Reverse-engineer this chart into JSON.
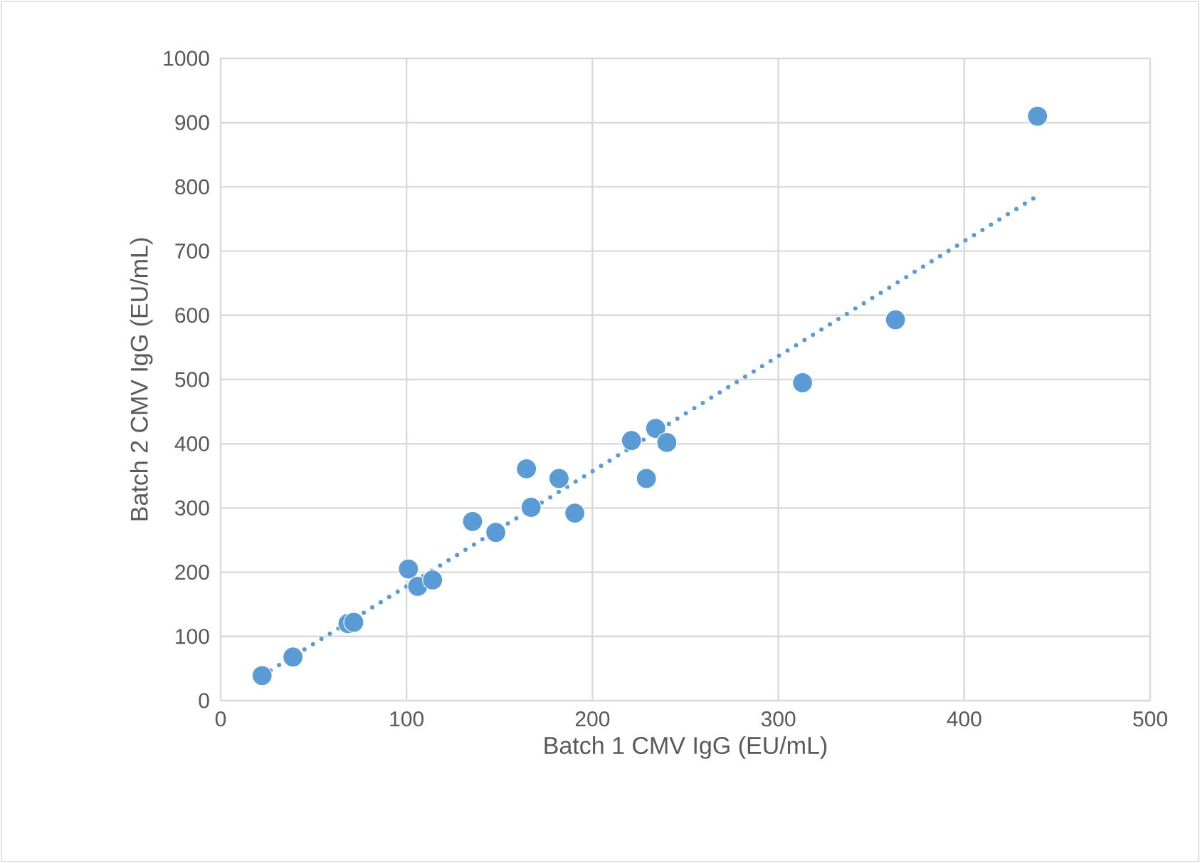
{
  "chart_data": {
    "type": "scatter",
    "xlabel": "Batch 1 CMV IgG (EU/mL)",
    "ylabel": "Batch 2 CMV IgG (EU/mL)",
    "xlim": [
      0,
      500
    ],
    "ylim": [
      0,
      1000
    ],
    "xticks": [
      0,
      100,
      200,
      300,
      400,
      500
    ],
    "yticks": [
      0,
      100,
      200,
      300,
      400,
      500,
      600,
      700,
      800,
      900,
      1000
    ],
    "grid": true,
    "series": [
      {
        "color": "#5b9bd5",
        "marker": "circle",
        "x": [
          22.3,
          38.9,
          68.5,
          71.6,
          101,
          106,
          114,
          135.5,
          148,
          164.5,
          167,
          182,
          190.5,
          221,
          229,
          234,
          240,
          313,
          363,
          439.4
        ],
        "values": [
          39,
          68,
          120,
          122,
          205,
          178,
          188,
          279,
          262,
          361,
          301,
          346,
          292,
          405,
          346,
          424,
          402,
          495,
          593,
          910
        ]
      },
      {
        "type": "line",
        "color": "#5b9bd5",
        "marker": "none",
        "line_style": "dotted",
        "x": [
          22.3,
          439.4
        ],
        "values": [
          39,
          786
        ]
      }
    ]
  }
}
